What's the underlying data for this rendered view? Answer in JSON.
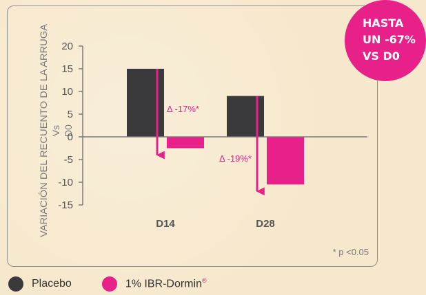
{
  "badge": {
    "lines": [
      "HASTA",
      "UN -67%",
      "VS D0"
    ]
  },
  "legend": [
    {
      "label": "Placebo",
      "color": "#3a3a3c"
    },
    {
      "label": "1% IBR-Dormin",
      "color": "#e8218a",
      "mark": "®"
    }
  ],
  "footnote": "* p <0.05",
  "chart_data": {
    "type": "bar",
    "ylabel_lines": [
      "VARIACIÓN  DEL RECUENTO DE LA ARRUGA",
      "Vs",
      "D0"
    ],
    "categories": [
      "D14",
      "D28"
    ],
    "yticks": [
      20,
      15,
      10,
      5,
      0,
      -5,
      -10,
      -15
    ],
    "ylim": [
      -15,
      20
    ],
    "series": [
      {
        "name": "Placebo",
        "values": [
          15,
          9
        ],
        "color": "#3a3a3c"
      },
      {
        "name": "1% IBR-Dormin",
        "values": [
          -2.5,
          -10.5
        ],
        "color": "#e8218a"
      }
    ],
    "annotations": [
      {
        "category": "D14",
        "from": 15,
        "to": -2.5,
        "text": "Δ -17%*"
      },
      {
        "category": "D28",
        "from": 9,
        "to": -10.5,
        "text": "Δ -19%*"
      }
    ]
  }
}
